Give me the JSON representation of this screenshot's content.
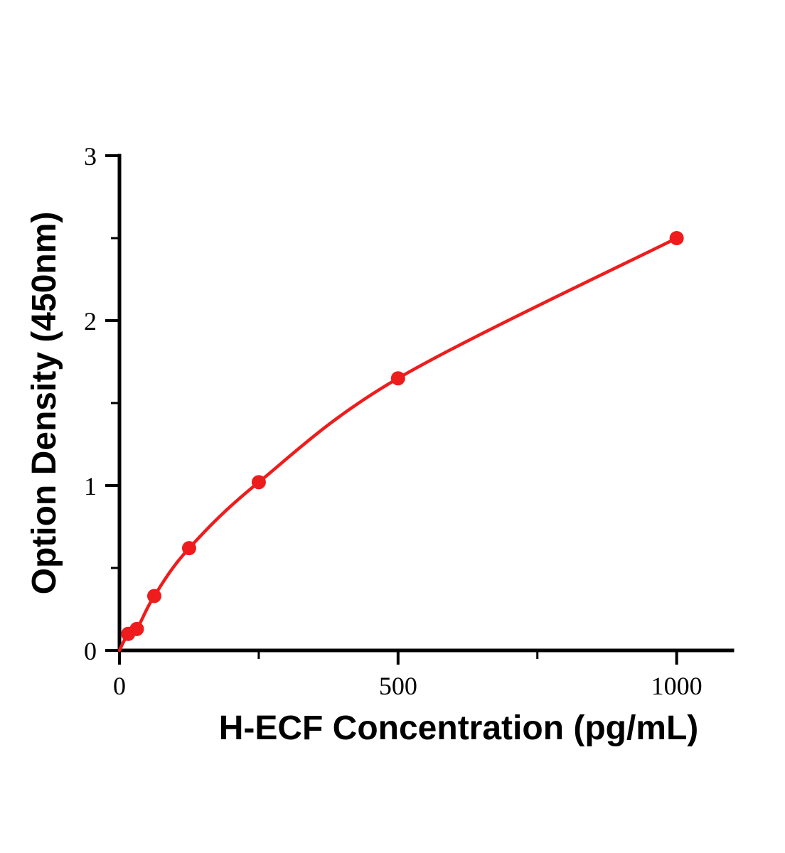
{
  "chart_data": {
    "type": "line",
    "title": "",
    "xlabel": "H-ECF Concentration (pg/mL)",
    "ylabel": "Option Density (450nm)",
    "x": [
      15.6,
      31.2,
      62.5,
      125,
      250,
      500,
      1000
    ],
    "y": [
      0.1,
      0.13,
      0.33,
      0.62,
      1.02,
      1.65,
      2.5
    ],
    "curve_start": {
      "x": 0,
      "y": 0.0
    },
    "xlim": [
      0,
      1100
    ],
    "ylim": [
      0,
      3
    ],
    "x_major_ticks": [
      0,
      500,
      1000
    ],
    "x_minor_ticks": [
      250,
      750
    ],
    "y_major_ticks": [
      0,
      1,
      2,
      3
    ],
    "y_minor_ticks": [
      0.5,
      1.5,
      2.5
    ],
    "line_color": "#ee1c1c",
    "axis_color": "#000000",
    "marker": "circle",
    "grid": false,
    "legend": "none"
  }
}
